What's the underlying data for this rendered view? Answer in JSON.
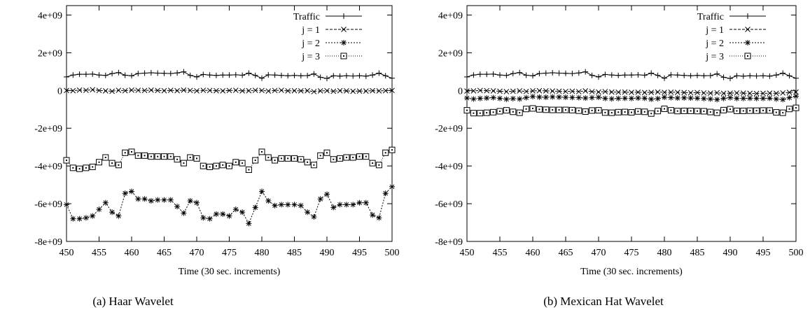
{
  "chart_data": [
    {
      "type": "line",
      "caption": "(a) Haar Wavelet",
      "xlabel": "Time (30 sec. increments)",
      "ylabel": "",
      "xlim": [
        450,
        500
      ],
      "ylim": [
        -8000000000,
        4500000000
      ],
      "xticks": [
        450,
        455,
        460,
        465,
        470,
        475,
        480,
        485,
        490,
        495,
        500
      ],
      "xtick_labels": [
        "450",
        "455",
        "460",
        "465",
        "470",
        "475",
        "480",
        "485",
        "490",
        "495",
        "500"
      ],
      "yticks": [
        -8000000000,
        -6000000000,
        -4000000000,
        -2000000000,
        0,
        2000000000,
        4000000000
      ],
      "ytick_labels": [
        "-8e+09",
        "-6e+09",
        "-4e+09",
        "-2e+09",
        "0",
        "2e+09",
        "4e+09"
      ],
      "legend_position": "top-right",
      "grid": false,
      "x": [
        450,
        451,
        452,
        453,
        454,
        455,
        456,
        457,
        458,
        459,
        460,
        461,
        462,
        463,
        464,
        465,
        466,
        467,
        468,
        469,
        470,
        471,
        472,
        473,
        474,
        475,
        476,
        477,
        478,
        479,
        480,
        481,
        482,
        483,
        484,
        485,
        486,
        487,
        488,
        489,
        490,
        491,
        492,
        493,
        494,
        495,
        496,
        497,
        498,
        499,
        500
      ],
      "series": [
        {
          "name": "Traffic",
          "marker": "plus",
          "dash": "",
          "values": [
            720000000,
            820000000,
            860000000,
            860000000,
            870000000,
            820000000,
            800000000,
            900000000,
            950000000,
            810000000,
            780000000,
            900000000,
            920000000,
            940000000,
            920000000,
            910000000,
            900000000,
            930000000,
            990000000,
            800000000,
            720000000,
            850000000,
            820000000,
            800000000,
            820000000,
            820000000,
            830000000,
            810000000,
            920000000,
            800000000,
            650000000,
            830000000,
            820000000,
            800000000,
            780000000,
            800000000,
            780000000,
            790000000,
            880000000,
            700000000,
            640000000,
            780000000,
            760000000,
            780000000,
            770000000,
            780000000,
            760000000,
            820000000,
            920000000,
            780000000,
            650000000
          ]
        },
        {
          "name": "j = 1",
          "marker": "cross",
          "dash": "4,2",
          "values": [
            0,
            -10000000,
            20000000,
            10000000,
            40000000,
            0,
            -20000000,
            -40000000,
            10000000,
            -10000000,
            20000000,
            10000000,
            0,
            20000000,
            0,
            -10000000,
            10000000,
            -10000000,
            20000000,
            0,
            -20000000,
            10000000,
            0,
            -10000000,
            -20000000,
            0,
            10000000,
            -20000000,
            -10000000,
            10000000,
            0,
            -30000000,
            0,
            10000000,
            -20000000,
            -10000000,
            -20000000,
            -10000000,
            -60000000,
            -20000000,
            -10000000,
            -40000000,
            -10000000,
            -20000000,
            -40000000,
            -30000000,
            -30000000,
            -10000000,
            -20000000,
            -10000000,
            0
          ]
        },
        {
          "name": "j = 2",
          "marker": "star",
          "dash": "2,2",
          "values": [
            -6050000000,
            -6800000000,
            -6800000000,
            -6750000000,
            -6650000000,
            -6300000000,
            -5950000000,
            -6450000000,
            -6650000000,
            -5450000000,
            -5350000000,
            -5750000000,
            -5750000000,
            -5850000000,
            -5800000000,
            -5800000000,
            -5800000000,
            -6150000000,
            -6500000000,
            -5850000000,
            -5950000000,
            -6750000000,
            -6800000000,
            -6550000000,
            -6550000000,
            -6650000000,
            -6300000000,
            -6450000000,
            -7050000000,
            -6200000000,
            -5350000000,
            -5850000000,
            -6100000000,
            -6050000000,
            -6050000000,
            -6050000000,
            -6100000000,
            -6450000000,
            -6700000000,
            -5750000000,
            -5500000000,
            -6200000000,
            -6050000000,
            -6050000000,
            -6050000000,
            -5950000000,
            -5950000000,
            -6600000000,
            -6750000000,
            -5450000000,
            -5100000000
          ]
        },
        {
          "name": "j = 3",
          "marker": "square",
          "dash": "1,2",
          "values": [
            -3700000000,
            -4100000000,
            -4150000000,
            -4100000000,
            -4050000000,
            -3800000000,
            -3550000000,
            -3850000000,
            -3950000000,
            -3300000000,
            -3250000000,
            -3450000000,
            -3450000000,
            -3500000000,
            -3500000000,
            -3500000000,
            -3500000000,
            -3650000000,
            -3850000000,
            -3550000000,
            -3600000000,
            -4000000000,
            -4050000000,
            -4000000000,
            -3950000000,
            -4000000000,
            -3800000000,
            -3850000000,
            -4200000000,
            -3700000000,
            -3250000000,
            -3550000000,
            -3700000000,
            -3600000000,
            -3600000000,
            -3600000000,
            -3650000000,
            -3800000000,
            -3950000000,
            -3450000000,
            -3300000000,
            -3650000000,
            -3600000000,
            -3550000000,
            -3550000000,
            -3500000000,
            -3500000000,
            -3850000000,
            -3950000000,
            -3300000000,
            -3150000000
          ]
        }
      ]
    },
    {
      "type": "line",
      "caption": "(b) Mexican Hat Wavelet",
      "xlabel": "Time (30 sec. increments)",
      "ylabel": "",
      "xlim": [
        450,
        500
      ],
      "ylim": [
        -8000000000,
        4500000000
      ],
      "xticks": [
        450,
        455,
        460,
        465,
        470,
        475,
        480,
        485,
        490,
        495,
        500
      ],
      "xtick_labels": [
        "450",
        "455",
        "460",
        "465",
        "470",
        "475",
        "480",
        "485",
        "490",
        "495",
        "500"
      ],
      "yticks": [
        -8000000000,
        -6000000000,
        -4000000000,
        -2000000000,
        0,
        2000000000,
        4000000000
      ],
      "ytick_labels": [
        "-8e+09",
        "-6e+09",
        "-4e+09",
        "-2e+09",
        "0",
        "2e+09",
        "4e+09"
      ],
      "legend_position": "top-right",
      "grid": false,
      "x": [
        450,
        451,
        452,
        453,
        454,
        455,
        456,
        457,
        458,
        459,
        460,
        461,
        462,
        463,
        464,
        465,
        466,
        467,
        468,
        469,
        470,
        471,
        472,
        473,
        474,
        475,
        476,
        477,
        478,
        479,
        480,
        481,
        482,
        483,
        484,
        485,
        486,
        487,
        488,
        489,
        490,
        491,
        492,
        493,
        494,
        495,
        496,
        497,
        498,
        499,
        500
      ],
      "series": [
        {
          "name": "Traffic",
          "marker": "plus",
          "dash": "",
          "values": [
            720000000,
            820000000,
            860000000,
            860000000,
            870000000,
            820000000,
            800000000,
            900000000,
            950000000,
            810000000,
            780000000,
            900000000,
            920000000,
            940000000,
            920000000,
            910000000,
            900000000,
            930000000,
            990000000,
            800000000,
            720000000,
            850000000,
            820000000,
            800000000,
            820000000,
            820000000,
            830000000,
            810000000,
            920000000,
            800000000,
            650000000,
            830000000,
            820000000,
            800000000,
            780000000,
            800000000,
            780000000,
            790000000,
            880000000,
            700000000,
            640000000,
            780000000,
            760000000,
            780000000,
            770000000,
            780000000,
            760000000,
            820000000,
            920000000,
            780000000,
            650000000
          ]
        },
        {
          "name": "j = 1",
          "marker": "cross",
          "dash": "4,2",
          "values": [
            -30000000,
            -20000000,
            0,
            -10000000,
            -20000000,
            -40000000,
            -60000000,
            -40000000,
            -20000000,
            -50000000,
            -20000000,
            -10000000,
            -20000000,
            -30000000,
            -40000000,
            -50000000,
            -40000000,
            -60000000,
            -20000000,
            -60000000,
            -80000000,
            -60000000,
            -80000000,
            -90000000,
            -80000000,
            -100000000,
            -90000000,
            -110000000,
            -100000000,
            -80000000,
            -100000000,
            -90000000,
            -100000000,
            -110000000,
            -120000000,
            -110000000,
            -130000000,
            -140000000,
            -120000000,
            -150000000,
            -140000000,
            -130000000,
            -140000000,
            -150000000,
            -160000000,
            -150000000,
            -140000000,
            -150000000,
            -130000000,
            -100000000,
            -80000000
          ]
        },
        {
          "name": "j = 2",
          "marker": "star",
          "dash": "2,2",
          "values": [
            -400000000,
            -450000000,
            -420000000,
            -400000000,
            -380000000,
            -420000000,
            -460000000,
            -430000000,
            -450000000,
            -380000000,
            -320000000,
            -350000000,
            -360000000,
            -340000000,
            -350000000,
            -360000000,
            -370000000,
            -380000000,
            -400000000,
            -380000000,
            -360000000,
            -420000000,
            -440000000,
            -420000000,
            -410000000,
            -420000000,
            -400000000,
            -410000000,
            -460000000,
            -430000000,
            -360000000,
            -380000000,
            -400000000,
            -390000000,
            -400000000,
            -410000000,
            -430000000,
            -450000000,
            -480000000,
            -420000000,
            -380000000,
            -420000000,
            -420000000,
            -410000000,
            -420000000,
            -420000000,
            -410000000,
            -450000000,
            -480000000,
            -380000000,
            -300000000
          ]
        },
        {
          "name": "j = 3",
          "marker": "square",
          "dash": "1,2",
          "values": [
            -1050000000,
            -1200000000,
            -1200000000,
            -1180000000,
            -1150000000,
            -1100000000,
            -1050000000,
            -1130000000,
            -1180000000,
            -980000000,
            -950000000,
            -1000000000,
            -1020000000,
            -1030000000,
            -1030000000,
            -1030000000,
            -1040000000,
            -1070000000,
            -1120000000,
            -1060000000,
            -1050000000,
            -1170000000,
            -1180000000,
            -1150000000,
            -1140000000,
            -1160000000,
            -1110000000,
            -1130000000,
            -1220000000,
            -1090000000,
            -970000000,
            -1050000000,
            -1090000000,
            -1080000000,
            -1080000000,
            -1090000000,
            -1100000000,
            -1140000000,
            -1180000000,
            -1040000000,
            -990000000,
            -1080000000,
            -1080000000,
            -1070000000,
            -1070000000,
            -1060000000,
            -1060000000,
            -1160000000,
            -1180000000,
            -980000000,
            -920000000
          ]
        }
      ]
    }
  ]
}
